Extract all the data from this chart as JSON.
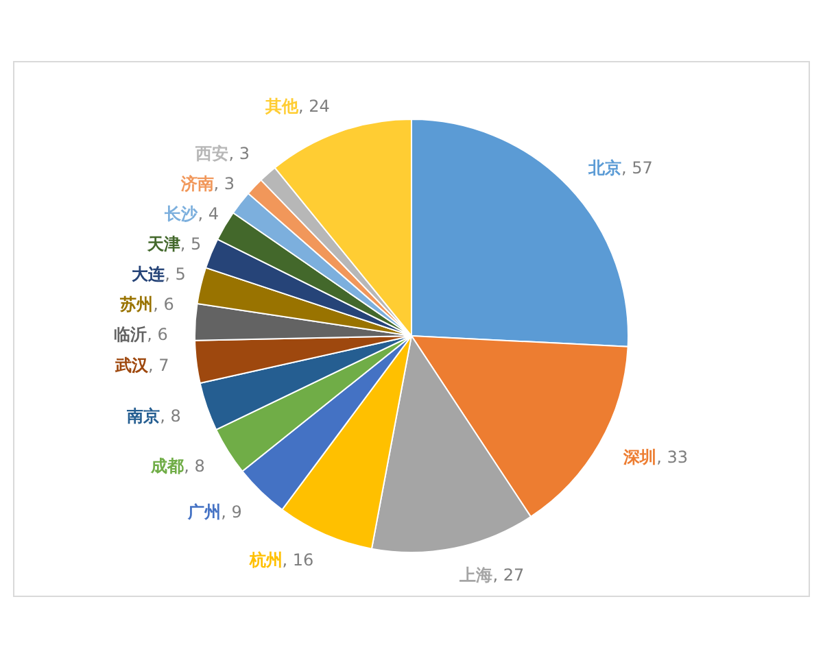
{
  "chart_data": {
    "type": "pie",
    "categories": [
      "北京",
      "深圳",
      "上海",
      "杭州",
      "广州",
      "成都",
      "南京",
      "武汉",
      "临沂",
      "苏州",
      "大连",
      "天津",
      "长沙",
      "济南",
      "西安",
      "其他"
    ],
    "values": [
      57,
      33,
      27,
      16,
      9,
      8,
      8,
      7,
      6,
      6,
      5,
      5,
      4,
      3,
      3,
      24
    ],
    "value_labels": [
      ", 57",
      ", 33",
      ", 27",
      ", 16",
      ", 9",
      ", 8",
      ", 8",
      ", 7",
      ", 6",
      ", 6",
      ", 5",
      ", 5",
      ", 4",
      ", 3",
      ", 3",
      ", 24"
    ],
    "colors": [
      "#5b9bd5",
      "#ed7d31",
      "#a5a5a5",
      "#ffc000",
      "#4472c4",
      "#70ad47",
      "#255e91",
      "#9e480e",
      "#636363",
      "#997300",
      "#264478",
      "#43682b",
      "#7cafdd",
      "#f1975a",
      "#b7b7b7",
      "#ffcd33"
    ]
  }
}
